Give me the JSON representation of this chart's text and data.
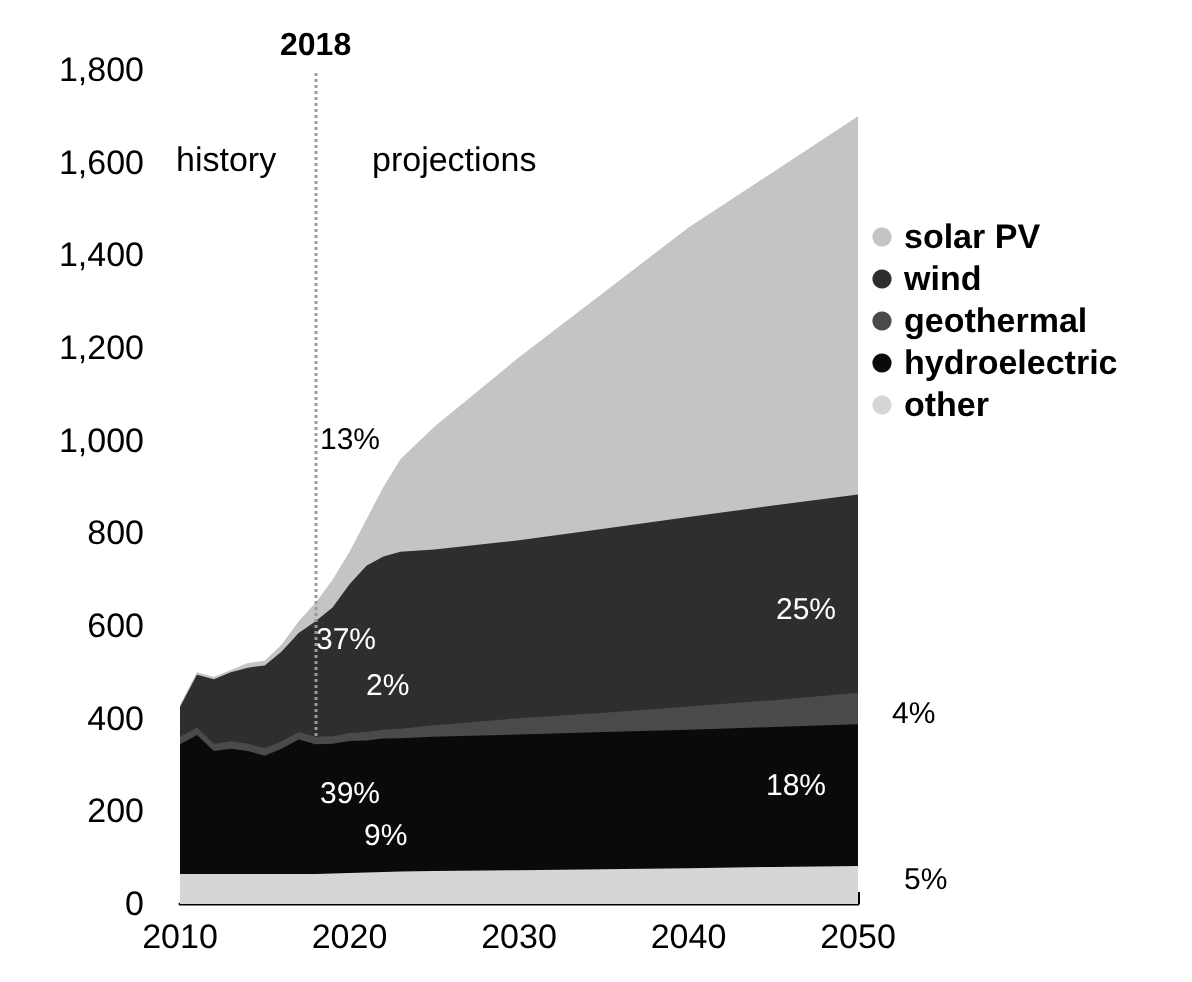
{
  "chart_data": {
    "type": "area",
    "stacked": true,
    "x": [
      2010,
      2011,
      2012,
      2013,
      2014,
      2015,
      2016,
      2017,
      2018,
      2019,
      2020,
      2021,
      2022,
      2023,
      2025,
      2030,
      2035,
      2040,
      2045,
      2050
    ],
    "series": [
      {
        "name": "other",
        "color": "#d6d6d6",
        "values": [
          65,
          65,
          65,
          65,
          65,
          65,
          65,
          65,
          65,
          66,
          67,
          68,
          69,
          70,
          71,
          73,
          75,
          77,
          80,
          82
        ]
      },
      {
        "name": "hydroelectric",
        "color": "#0a0a0a",
        "values": [
          280,
          300,
          265,
          270,
          265,
          255,
          270,
          290,
          280,
          280,
          285,
          285,
          288,
          288,
          290,
          293,
          296,
          299,
          302,
          306
        ]
      },
      {
        "name": "geothermal",
        "color": "#4a4a4a",
        "values": [
          16,
          16,
          16,
          16,
          16,
          16,
          16,
          16,
          16,
          16,
          17,
          18,
          19,
          20,
          25,
          35,
          42,
          50,
          58,
          68
        ]
      },
      {
        "name": "wind",
        "color": "#2e2e2e",
        "values": [
          64,
          114,
          139,
          149,
          164,
          179,
          194,
          214,
          249,
          278,
          321,
          359,
          374,
          382,
          379,
          384,
          397,
          409,
          420,
          428
        ]
      },
      {
        "name": "solar PV",
        "color": "#c4c4c4",
        "values": [
          5,
          5,
          5,
          5,
          10,
          10,
          15,
          25,
          40,
          60,
          70,
          100,
          150,
          200,
          265,
          395,
          510,
          625,
          720,
          816
        ]
      }
    ],
    "xlim": [
      2010,
      2050
    ],
    "xticks": [
      2010,
      2020,
      2030,
      2040,
      2050
    ],
    "ylim": [
      0,
      1800
    ],
    "yticks": [
      {
        "value": 0,
        "label": "0"
      },
      {
        "value": 200,
        "label": "200"
      },
      {
        "value": 400,
        "label": "400"
      },
      {
        "value": 600,
        "label": "600"
      },
      {
        "value": 800,
        "label": "800"
      },
      {
        "value": 1000,
        "label": "1,000"
      },
      {
        "value": 1200,
        "label": "1,200"
      },
      {
        "value": 1400,
        "label": "1,400"
      },
      {
        "value": 1600,
        "label": "1,600"
      },
      {
        "value": 1800,
        "label": "1,800"
      }
    ],
    "grid": false,
    "legend": "right",
    "ref_lines": [
      {
        "axis": "x",
        "value": 2018,
        "label": "2018",
        "color": "#9a9a9a",
        "line_style": "dotted"
      }
    ],
    "annotations": [
      "history",
      "projections",
      "13%",
      "37%",
      "2%",
      "39%",
      "9%",
      "25%",
      "4%",
      "18%",
      "5%"
    ]
  }
}
